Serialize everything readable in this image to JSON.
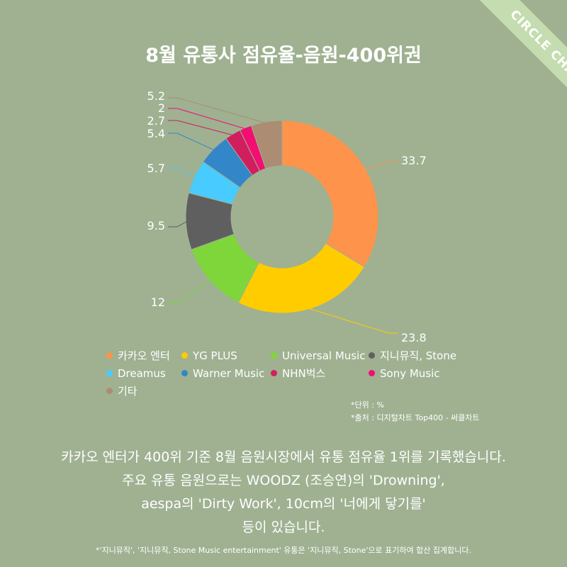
{
  "badge": "CIRCLE CHART",
  "chart_data": {
    "type": "pie",
    "title": "8월 유통사 점유율-음원-400위권",
    "categories": [
      "카카오 엔터",
      "YG PLUS",
      "Universal Music",
      "지니뮤직, Stone",
      "Dreamus",
      "Warner Music",
      "NHN벅스",
      "Sony Music",
      "기타"
    ],
    "values": [
      33.7,
      23.8,
      12,
      9.5,
      5.7,
      5.4,
      2.7,
      2,
      5.2
    ],
    "data_labels": [
      "33.7",
      "23.8",
      "12",
      "9.5",
      "5.7",
      "5.4",
      "2.7",
      "2",
      "5.2"
    ],
    "colors": [
      "#fe934b",
      "#ffcc00",
      "#7ed63a",
      "#5f5f5f",
      "#48cbfe",
      "#3386c8",
      "#d01e5e",
      "#f20e72",
      "#ac8c72"
    ],
    "donut": true,
    "legend_position": "bottom"
  },
  "notes": {
    "unit": "*단위 : %",
    "source": "*출처 : 디지털차트 Top400 - 써클차트"
  },
  "description": {
    "lines": [
      "카카오 엔터가 400위 기준 8월 음원시장에서 유통 점유율 1위를 기록했습니다.",
      "주요 유통 음원으로는 WOODZ (조승연)의 'Drowning',",
      "aespa의 'Dirty Work', 10cm의 '너에게 닿기를'",
      "등이 있습니다."
    ]
  },
  "footnote": "*'지니뮤직', '지니뮤직, Stone Music entertainment' 유통은 '지니뮤직, Stone'으로 표기하여 합산 집계합니다."
}
